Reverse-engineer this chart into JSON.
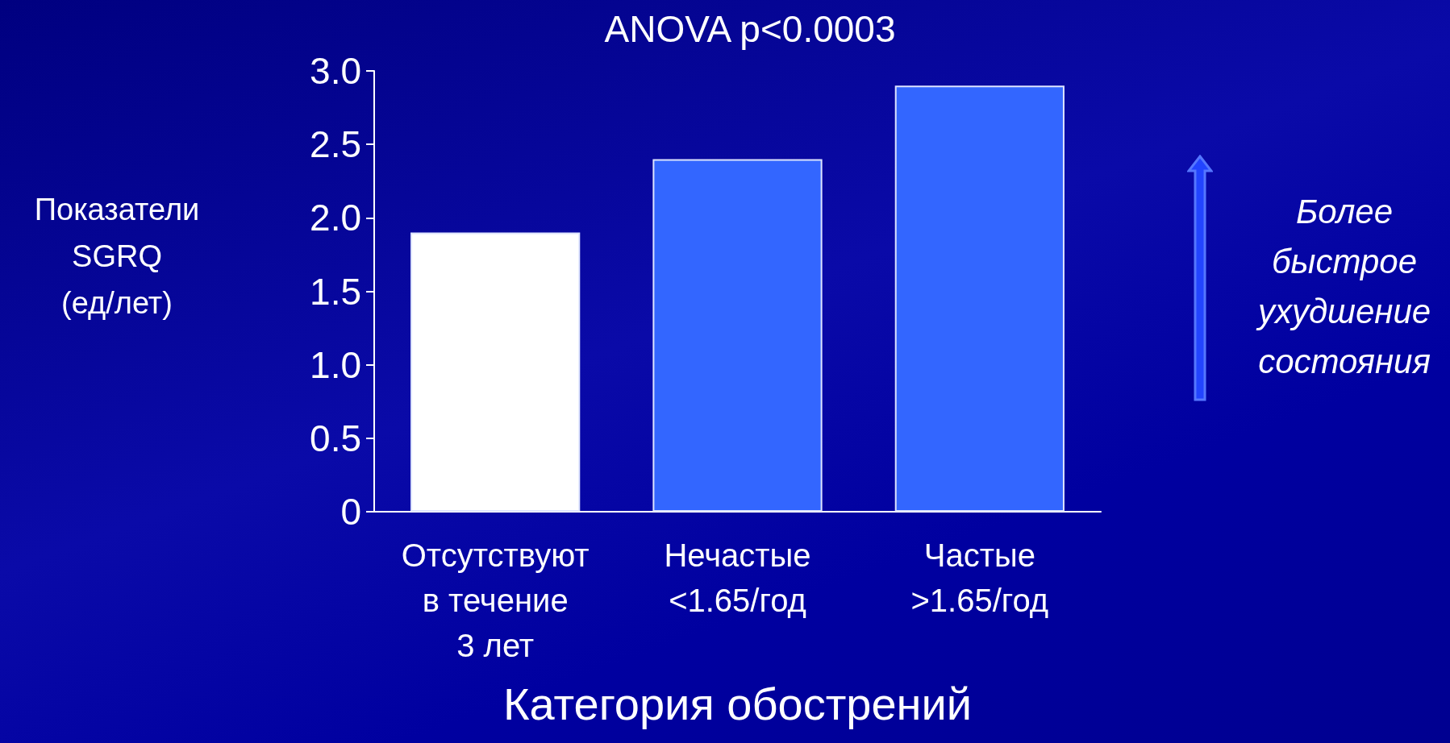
{
  "chart_data": {
    "type": "bar",
    "title": "ANOVA p<0.0003",
    "xlabel": "Категория обострений",
    "ylabel": "Показатели\nSGRQ\n(ед/лет)",
    "annotations": [
      "Более\nбыстрое\nухудшение\nсостояния"
    ],
    "categories": [
      "Отсутствуют\nв течение\n3 лет",
      "Нечастые\n<1.65/год",
      "Частые\n>1.65/год"
    ],
    "values": [
      1.9,
      2.4,
      2.9
    ],
    "colors": [
      "#ffffff",
      "#3366ff",
      "#3366ff"
    ],
    "ylim": [
      0,
      3
    ],
    "yticks": [
      0,
      0.5,
      {
        "value": 1,
        "label": "1.0"
      },
      1.5,
      {
        "value": 2,
        "label": "2.0"
      },
      2.5,
      {
        "value": 3,
        "label": "3.0"
      }
    ],
    "grid": false
  }
}
